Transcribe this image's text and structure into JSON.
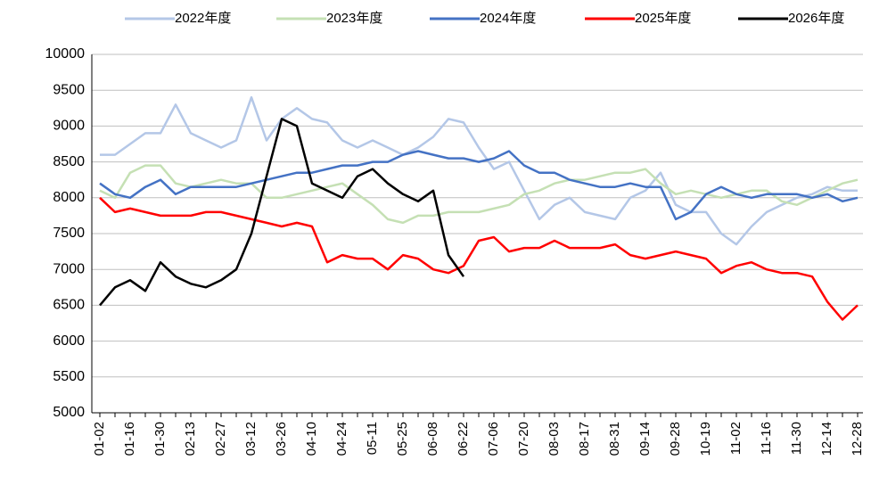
{
  "chart_data": {
    "type": "line",
    "categories": [
      "01-02",
      null,
      "01-16",
      null,
      "01-30",
      null,
      "02-13",
      null,
      "02-27",
      null,
      "03-12",
      null,
      "03-26",
      null,
      "04-10",
      null,
      "04-24",
      null,
      "05-11",
      null,
      "05-25",
      null,
      "06-08",
      null,
      "06-22",
      null,
      "07-06",
      null,
      "07-20",
      null,
      "08-03",
      null,
      "08-17",
      null,
      "08-31",
      null,
      "09-14",
      null,
      "09-28",
      null,
      "10-19",
      null,
      "11-02",
      null,
      "11-16",
      null,
      "11-30",
      null,
      "12-14",
      null,
      "12-28"
    ],
    "series": [
      {
        "name": "2022年度",
        "color": "#b4c7e7",
        "values": [
          8600,
          8600,
          8750,
          8900,
          8900,
          9300,
          8900,
          8800,
          8700,
          8800,
          9400,
          8800,
          9100,
          9250,
          9100,
          9050,
          8800,
          8700,
          8800,
          8700,
          8600,
          8700,
          8850,
          9100,
          9050,
          8700,
          8400,
          8500,
          8100,
          7700,
          7900,
          8000,
          7800,
          7750,
          7700,
          8000,
          8100,
          8350,
          7900,
          7800,
          7800,
          7500,
          7350,
          7600,
          7800,
          7900,
          8000,
          8050,
          8150,
          8100,
          8100
        ]
      },
      {
        "name": "2023年度",
        "color": "#c5e0b4",
        "values": [
          8100,
          8000,
          8350,
          8450,
          8450,
          8200,
          8150,
          8200,
          8250,
          8200,
          8200,
          8000,
          8000,
          8050,
          8100,
          8150,
          8200,
          8050,
          7900,
          7700,
          7650,
          7750,
          7750,
          7800,
          7800,
          7800,
          7850,
          7900,
          8050,
          8100,
          8200,
          8250,
          8250,
          8300,
          8350,
          8350,
          8400,
          8200,
          8050,
          8100,
          8050,
          8000,
          8050,
          8100,
          8100,
          7950,
          7900,
          8000,
          8100,
          8200,
          8250
        ]
      },
      {
        "name": "2024年度",
        "color": "#4472c4",
        "values": [
          8200,
          8050,
          8000,
          8150,
          8250,
          8050,
          8150,
          8150,
          8150,
          8150,
          8200,
          8250,
          8300,
          8350,
          8350,
          8400,
          8450,
          8450,
          8500,
          8500,
          8600,
          8650,
          8600,
          8550,
          8550,
          8500,
          8550,
          8650,
          8450,
          8350,
          8350,
          8250,
          8200,
          8150,
          8150,
          8200,
          8150,
          8150,
          7700,
          7800,
          8050,
          8150,
          8050,
          8000,
          8050,
          8050,
          8050,
          8000,
          8050,
          7950,
          8000
        ]
      },
      {
        "name": "2025年度",
        "color": "#ff0000",
        "values": [
          8000,
          7800,
          7850,
          7800,
          7750,
          7750,
          7750,
          7800,
          7800,
          7750,
          7700,
          7650,
          7600,
          7650,
          7600,
          7100,
          7200,
          7150,
          7150,
          7000,
          7200,
          7150,
          7000,
          6950,
          7050,
          7400,
          7450,
          7250,
          7300,
          7300,
          7400,
          7300,
          7300,
          7300,
          7350,
          7200,
          7150,
          7200,
          7250,
          7200,
          7150,
          6950,
          7050,
          7100,
          7000,
          6950,
          6950,
          6900,
          6550,
          6300,
          6500
        ]
      },
      {
        "name": "2026年度",
        "color": "#000000",
        "values": [
          6500,
          6750,
          6850,
          6700,
          7100,
          6900,
          6800,
          6750,
          6850,
          7000,
          7500,
          8300,
          9100,
          9000,
          8200,
          8100,
          8000,
          8300,
          8400,
          8200,
          8050,
          7950,
          8100,
          7200,
          6900,
          null,
          null,
          null,
          null,
          null,
          null,
          null,
          null,
          null,
          null,
          null,
          null,
          null,
          null,
          null,
          null,
          null,
          null,
          null,
          null,
          null,
          null,
          null,
          null,
          null,
          null
        ]
      }
    ],
    "ylim": [
      5000,
      10000
    ],
    "yticks": [
      5000,
      5500,
      6000,
      6500,
      7000,
      7500,
      8000,
      8500,
      9000,
      9500,
      10000
    ],
    "grid": true,
    "legend": "top"
  }
}
